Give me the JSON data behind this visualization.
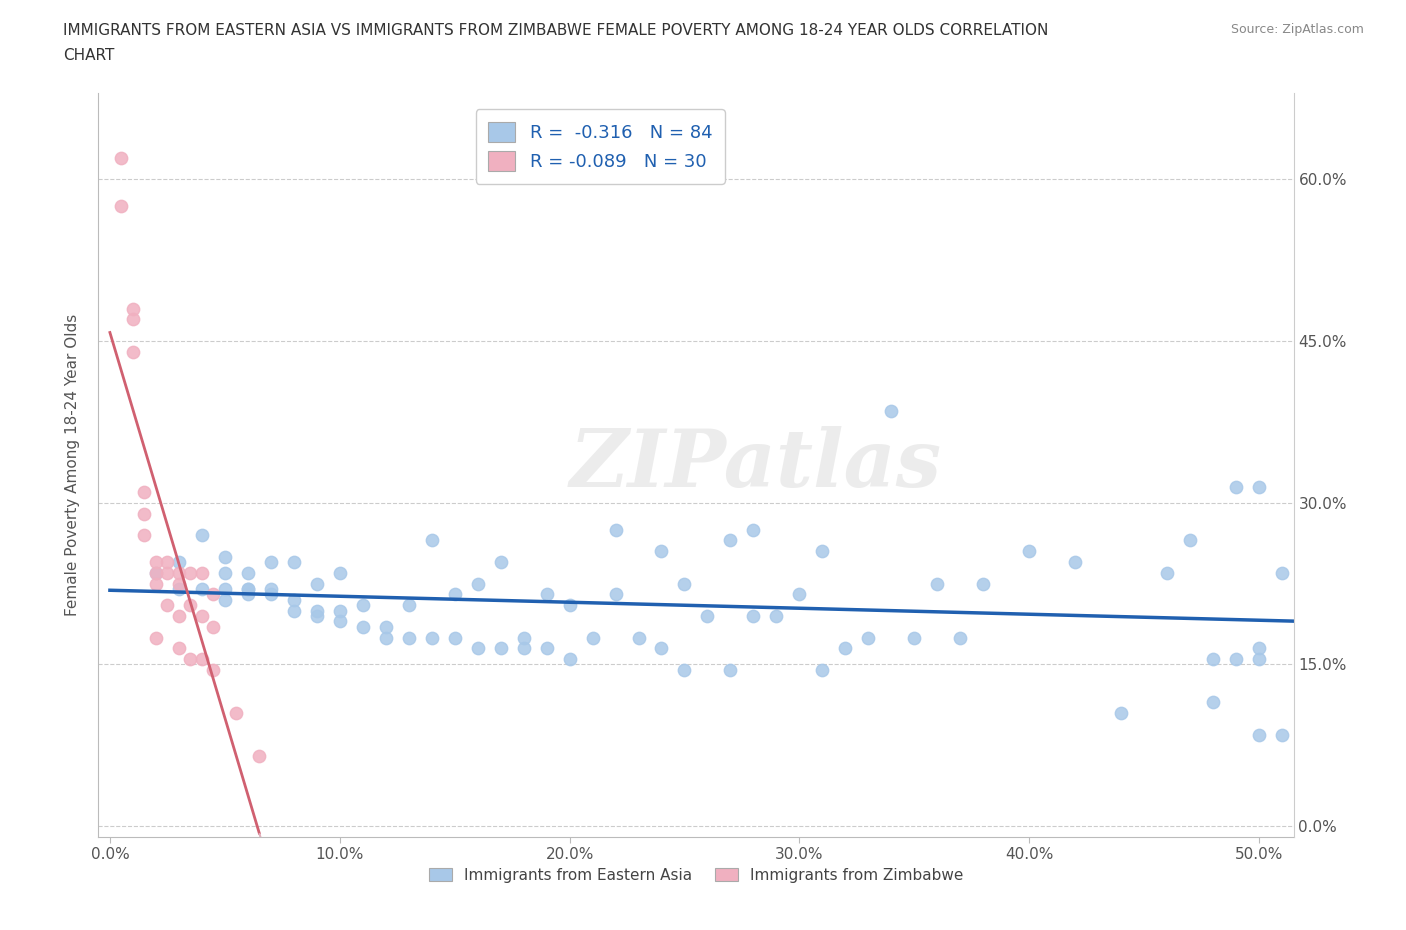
{
  "title_line1": "IMMIGRANTS FROM EASTERN ASIA VS IMMIGRANTS FROM ZIMBABWE FEMALE POVERTY AMONG 18-24 YEAR OLDS CORRELATION",
  "title_line2": "CHART",
  "source": "Source: ZipAtlas.com",
  "ylabel": "Female Poverty Among 18-24 Year Olds",
  "xlabel_ticks": [
    "0.0%",
    "10.0%",
    "20.0%",
    "30.0%",
    "40.0%",
    "50.0%"
  ],
  "ylabel_ticks": [
    "0.0%",
    "15.0%",
    "30.0%",
    "45.0%",
    "60.0%"
  ],
  "xlim": [
    -0.005,
    0.515
  ],
  "ylim": [
    -0.01,
    0.68
  ],
  "blue_color": "#a8c8e8",
  "pink_color": "#f0b0c0",
  "blue_line_color": "#2060b0",
  "pink_line_color": "#d06070",
  "pink_dash_color": "#e0b0bc",
  "R_blue": -0.316,
  "N_blue": 84,
  "R_pink": -0.089,
  "N_pink": 30,
  "legend_label_blue": "Immigrants from Eastern Asia",
  "legend_label_pink": "Immigrants from Zimbabwe",
  "watermark": "ZIPatlas",
  "blue_scatter_x": [
    0.02,
    0.03,
    0.03,
    0.04,
    0.04,
    0.05,
    0.05,
    0.05,
    0.05,
    0.06,
    0.06,
    0.06,
    0.06,
    0.07,
    0.07,
    0.07,
    0.08,
    0.08,
    0.08,
    0.09,
    0.09,
    0.09,
    0.1,
    0.1,
    0.1,
    0.11,
    0.11,
    0.12,
    0.12,
    0.13,
    0.13,
    0.14,
    0.14,
    0.15,
    0.15,
    0.16,
    0.16,
    0.17,
    0.17,
    0.18,
    0.18,
    0.19,
    0.19,
    0.2,
    0.2,
    0.21,
    0.22,
    0.22,
    0.23,
    0.24,
    0.24,
    0.25,
    0.25,
    0.26,
    0.27,
    0.27,
    0.28,
    0.28,
    0.29,
    0.3,
    0.31,
    0.31,
    0.32,
    0.33,
    0.34,
    0.35,
    0.36,
    0.37,
    0.38,
    0.4,
    0.42,
    0.44,
    0.46,
    0.47,
    0.48,
    0.48,
    0.49,
    0.49,
    0.5,
    0.5,
    0.5,
    0.5,
    0.51,
    0.51
  ],
  "blue_scatter_y": [
    0.235,
    0.245,
    0.22,
    0.22,
    0.27,
    0.21,
    0.22,
    0.235,
    0.25,
    0.215,
    0.22,
    0.22,
    0.235,
    0.215,
    0.22,
    0.245,
    0.2,
    0.21,
    0.245,
    0.195,
    0.2,
    0.225,
    0.19,
    0.2,
    0.235,
    0.185,
    0.205,
    0.175,
    0.185,
    0.175,
    0.205,
    0.175,
    0.265,
    0.175,
    0.215,
    0.165,
    0.225,
    0.165,
    0.245,
    0.165,
    0.175,
    0.165,
    0.215,
    0.155,
    0.205,
    0.175,
    0.215,
    0.275,
    0.175,
    0.165,
    0.255,
    0.145,
    0.225,
    0.195,
    0.145,
    0.265,
    0.195,
    0.275,
    0.195,
    0.215,
    0.145,
    0.255,
    0.165,
    0.175,
    0.385,
    0.175,
    0.225,
    0.175,
    0.225,
    0.255,
    0.245,
    0.105,
    0.235,
    0.265,
    0.155,
    0.115,
    0.315,
    0.155,
    0.155,
    0.315,
    0.085,
    0.165,
    0.235,
    0.085
  ],
  "pink_scatter_x": [
    0.005,
    0.005,
    0.01,
    0.01,
    0.01,
    0.015,
    0.015,
    0.015,
    0.02,
    0.02,
    0.02,
    0.02,
    0.025,
    0.025,
    0.025,
    0.03,
    0.03,
    0.03,
    0.03,
    0.035,
    0.035,
    0.035,
    0.04,
    0.04,
    0.04,
    0.045,
    0.045,
    0.045,
    0.055,
    0.065
  ],
  "pink_scatter_y": [
    0.575,
    0.62,
    0.48,
    0.47,
    0.44,
    0.31,
    0.29,
    0.27,
    0.245,
    0.235,
    0.225,
    0.175,
    0.245,
    0.235,
    0.205,
    0.235,
    0.225,
    0.195,
    0.165,
    0.235,
    0.205,
    0.155,
    0.235,
    0.195,
    0.155,
    0.215,
    0.185,
    0.145,
    0.105,
    0.065
  ]
}
